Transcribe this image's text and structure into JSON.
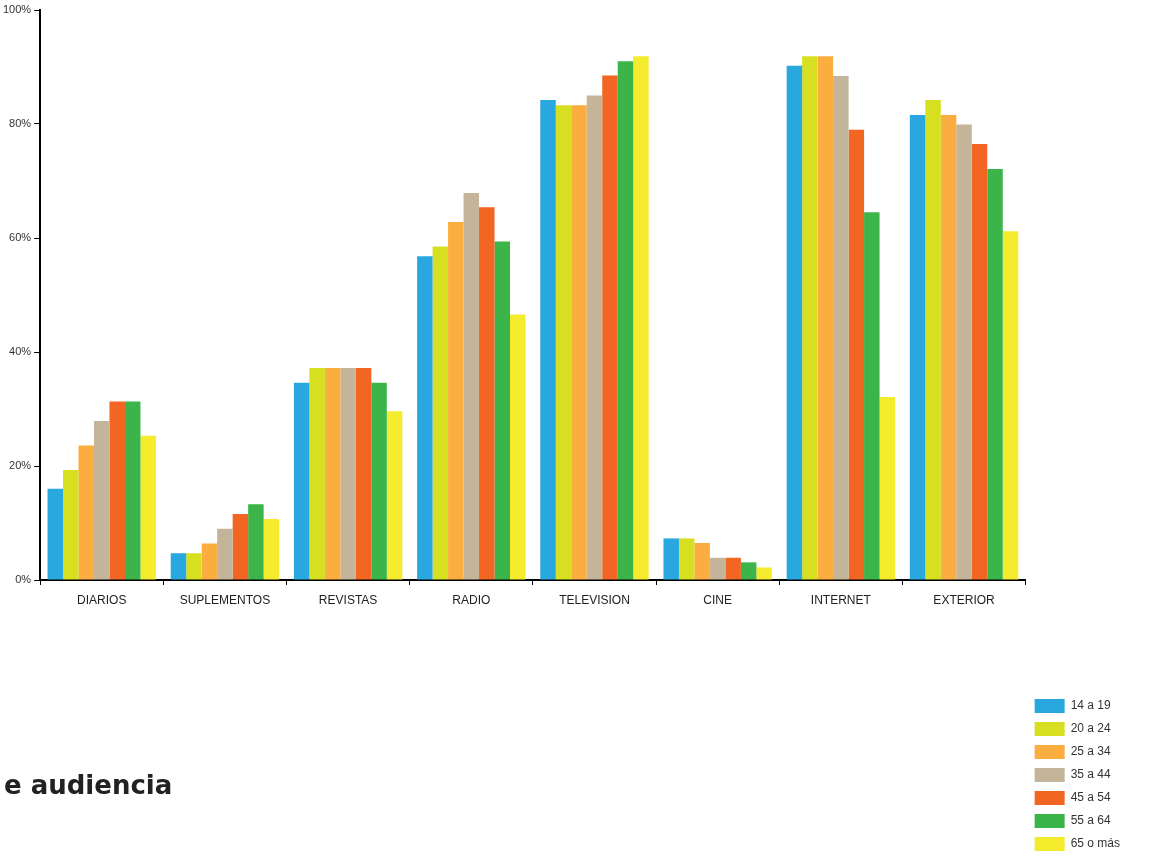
{
  "chart_data": {
    "type": "bar",
    "categories": [
      "DIARIOS",
      "SUPLEMENTOS",
      "REVISTAS",
      "RADIO",
      "TELEVISION",
      "CINE",
      "INTERNET",
      "EXTERIOR"
    ],
    "series": [
      {
        "name": "14 a 19",
        "color": "#29a8e0",
        "values": [
          16,
          4.7,
          34.6,
          56.8,
          84.2,
          7.3,
          90.2,
          81.6
        ]
      },
      {
        "name": "20 a 24",
        "color": "#d6e021",
        "values": [
          19.3,
          4.7,
          37.2,
          58.5,
          83.3,
          7.3,
          91.9,
          84.2
        ]
      },
      {
        "name": "25 a 34",
        "color": "#fbad3f",
        "values": [
          23.6,
          6.4,
          37.2,
          62.8,
          83.3,
          6.5,
          91.9,
          81.6
        ]
      },
      {
        "name": "35 a 44",
        "color": "#c4b49a",
        "values": [
          27.9,
          9,
          37.2,
          67.9,
          85,
          3.9,
          88.4,
          79.9
        ]
      },
      {
        "name": "45 a 54",
        "color": "#f26522",
        "values": [
          31.3,
          11.6,
          37.2,
          65.4,
          88.5,
          3.9,
          79,
          76.5
        ]
      },
      {
        "name": "55 a 64",
        "color": "#3bb54a",
        "values": [
          31.3,
          13.3,
          34.6,
          59.4,
          91,
          3.1,
          64.5,
          72.1
        ]
      },
      {
        "name": "65 o más",
        "color": "#f4ec2c",
        "values": [
          25.3,
          10.7,
          29.6,
          46.6,
          91.9,
          2.2,
          32.1,
          61.2
        ]
      }
    ],
    "ylim": [
      0,
      100
    ],
    "yticks": [
      {
        "value": 0,
        "label": "0%"
      },
      {
        "value": 20,
        "label": "20%"
      },
      {
        "value": 40,
        "label": "40%"
      },
      {
        "value": 60,
        "label": "60%"
      },
      {
        "value": 80,
        "label": "80%"
      },
      {
        "value": 100,
        "label": "100%"
      }
    ],
    "grid": false,
    "legend": "bottom right",
    "annotations": [
      "e audiencia"
    ]
  }
}
